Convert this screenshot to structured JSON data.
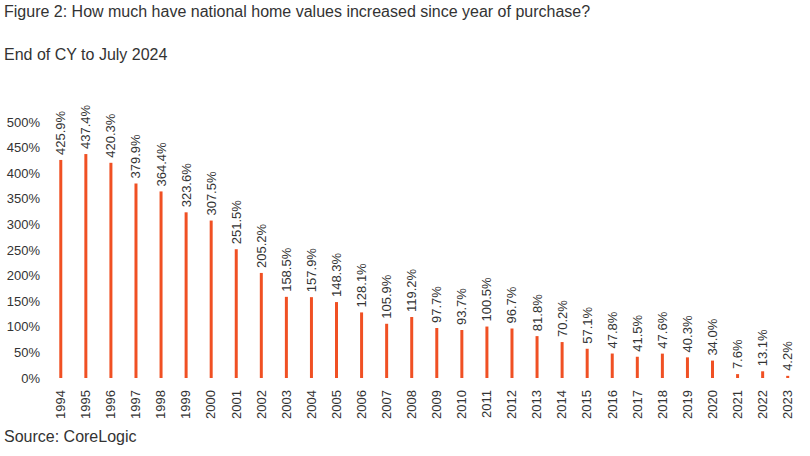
{
  "chart_data": {
    "type": "bar",
    "title": "Figure 2: How much have national home values increased since year of purchase?",
    "subtitle": "End of CY to July 2024",
    "source": "Source: CoreLogic",
    "categories": [
      "1994",
      "1995",
      "1996",
      "1997",
      "1998",
      "1999",
      "2000",
      "2001",
      "2002",
      "2003",
      "2004",
      "2005",
      "2006",
      "2007",
      "2008",
      "2009",
      "2010",
      "2011",
      "2012",
      "2013",
      "2014",
      "2015",
      "2016",
      "2017",
      "2018",
      "2019",
      "2020",
      "2021",
      "2022",
      "2023"
    ],
    "values": [
      425.9,
      437.4,
      420.3,
      379.9,
      364.4,
      323.6,
      307.5,
      251.5,
      205.2,
      158.5,
      157.9,
      148.3,
      128.1,
      105.9,
      119.2,
      97.7,
      93.7,
      100.5,
      96.7,
      81.8,
      70.2,
      57.1,
      47.8,
      41.5,
      47.6,
      40.3,
      34.0,
      7.6,
      13.1,
      4.2
    ],
    "value_labels": [
      "425.9%",
      "437.4%",
      "420.3%",
      "379.9%",
      "364.4%",
      "323.6%",
      "307.5%",
      "251.5%",
      "205.2%",
      "158.5%",
      "157.9%",
      "148.3%",
      "128.1%",
      "105.9%",
      "119.2%",
      "97.7%",
      "93.7%",
      "100.5%",
      "96.7%",
      "81.8%",
      "70.2%",
      "57.1%",
      "47.8%",
      "41.5%",
      "47.6%",
      "40.3%",
      "34.0%",
      "7.6%",
      "13.1%",
      "4.2%"
    ],
    "color": "#f05023",
    "ylim": [
      0,
      500
    ],
    "yticks": [
      {
        "value": 0,
        "label": "0%"
      },
      {
        "value": 50,
        "label": "50%"
      },
      {
        "value": 100,
        "label": "100%"
      },
      {
        "value": 150,
        "label": "150%"
      },
      {
        "value": 200,
        "label": "200%"
      },
      {
        "value": 250,
        "label": "250%"
      },
      {
        "value": 300,
        "label": "300%"
      },
      {
        "value": 350,
        "label": "350%"
      },
      {
        "value": 400,
        "label": "400%"
      },
      {
        "value": 450,
        "label": "450%"
      },
      {
        "value": 500,
        "label": "500%"
      }
    ],
    "grid": false,
    "data_labels": true
  }
}
